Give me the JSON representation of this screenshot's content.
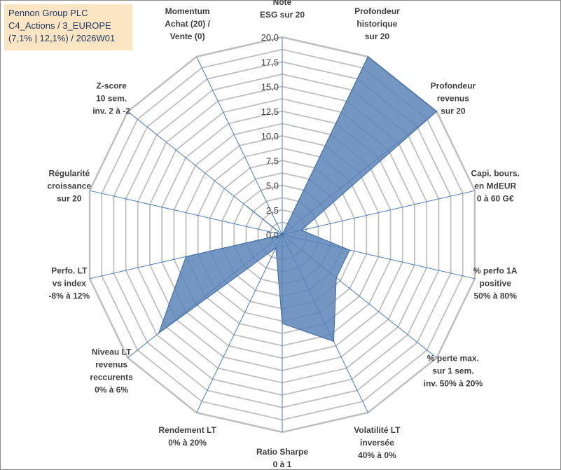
{
  "title_box": {
    "line1": "Pennon Group PLC",
    "line2": "C4_Actions / 3_EUROPE",
    "line3": "(7,1% | 12,1%) / 2026W01"
  },
  "colors": {
    "fill": "#5b84b8",
    "stroke": "#3d6aa5",
    "grid": "#bfbfbf",
    "spoke": "#4a7ebb",
    "title_bg": "#fbe5c2",
    "title_text": "#1f3864"
  },
  "chart_data": {
    "type": "radar",
    "rmin": 0,
    "rmax": 20,
    "ticks": [
      "0,0",
      "2,5",
      "5,0",
      "7,5",
      "10,0",
      "12,5",
      "15,0",
      "17,5",
      "20,0"
    ],
    "tick_values": [
      0,
      2.5,
      5,
      7.5,
      10,
      12.5,
      15,
      17.5,
      20
    ],
    "series": [
      {
        "name": "Pennon Group PLC",
        "values": [
          0,
          20,
          20,
          2,
          7,
          7,
          12,
          9,
          1.5,
          16,
          10,
          0,
          4.5,
          0
        ]
      }
    ],
    "categories": [
      [
        "Note",
        "ESG sur 20"
      ],
      [
        "Profondeur",
        "historique",
        "sur 20"
      ],
      [
        "Profondeur",
        "revenus",
        "sur 20"
      ],
      [
        "Capi. bours.",
        "en MdEUR",
        "0 à 60 G€"
      ],
      [
        "% perfo 1A",
        "positive",
        "50% à 80%"
      ],
      [
        "% perte max.",
        "sur 1 sem.",
        "inv. 50% à 20%"
      ],
      [
        "Volatilité LT",
        "inversée",
        "40% à 0%"
      ],
      [
        "Ratio Sharpe",
        "0 à 1"
      ],
      [
        "Rendement LT",
        "0% à 20%"
      ],
      [
        "Niveau LT",
        "revenus",
        "reccurents",
        "0% à 6%"
      ],
      [
        "Perfo. LT",
        "vs index",
        "-8% à 12%"
      ],
      [
        "Régularité",
        "croissance",
        "sur 20"
      ],
      [
        "Z-score",
        "10 sem.",
        "inv. 2 à -2"
      ],
      [
        "Momentum",
        "Achat (20) /",
        "Vente (0)"
      ]
    ]
  }
}
